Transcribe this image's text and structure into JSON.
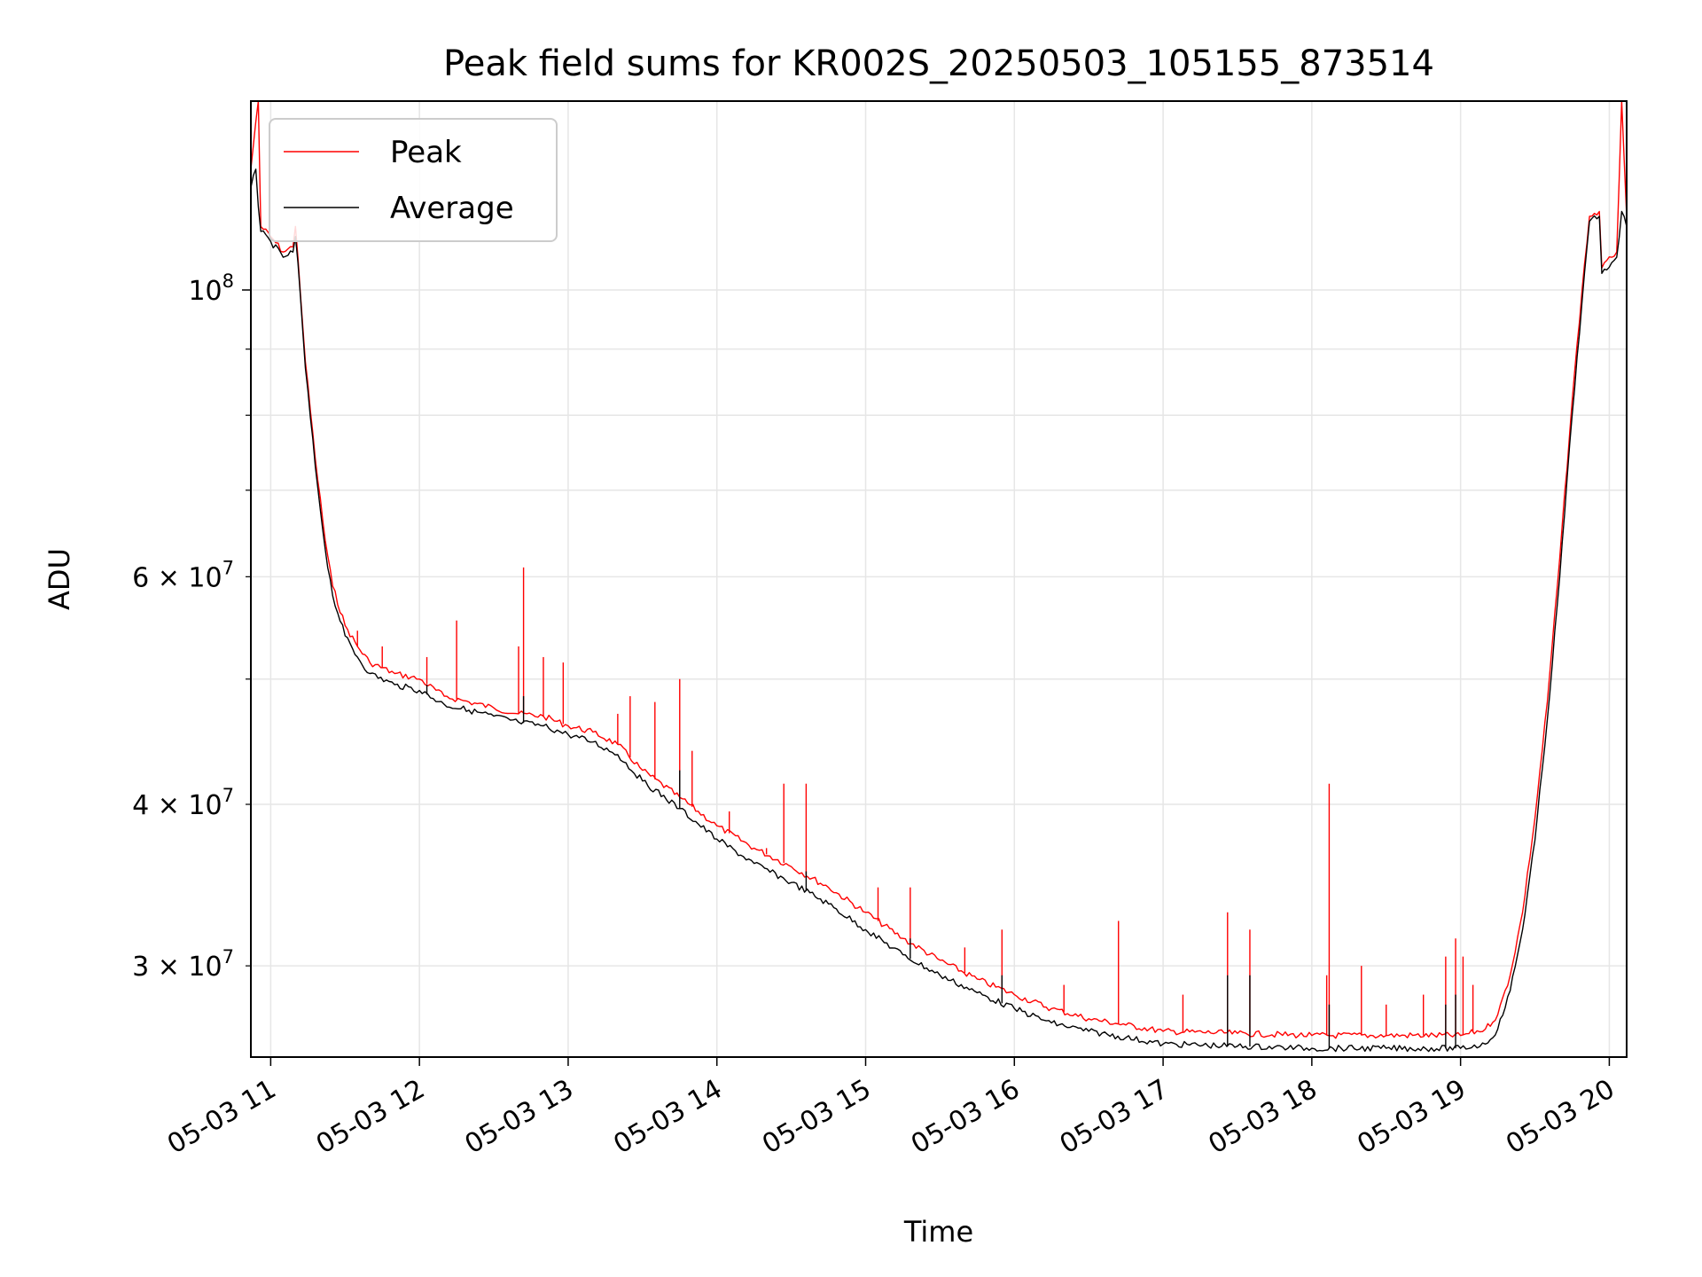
{
  "chart_data": {
    "type": "line",
    "title": "Peak field sums for KR002S_20250503_105155_873514",
    "xlabel": "Time",
    "ylabel": "ADU",
    "x_scale": "time",
    "y_scale": "log",
    "xlim": [
      "2025-05-03T10:52",
      "2025-05-03T20:07"
    ],
    "ylim": [
      25500000,
      140000000
    ],
    "grid": true,
    "legend_position": "upper-left",
    "x_tick_labels": [
      "05-03 11",
      "05-03 12",
      "05-03 13",
      "05-03 14",
      "05-03 15",
      "05-03 16",
      "05-03 17",
      "05-03 18",
      "05-03 19",
      "05-03 20"
    ],
    "x_ticks": [
      "2025-05-03T11:00",
      "2025-05-03T12:00",
      "2025-05-03T13:00",
      "2025-05-03T14:00",
      "2025-05-03T15:00",
      "2025-05-03T16:00",
      "2025-05-03T17:00",
      "2025-05-03T18:00",
      "2025-05-03T19:00",
      "2025-05-03T20:00"
    ],
    "y_major_ticks": [
      {
        "value": 100000000,
        "base": "10",
        "exp": "8"
      }
    ],
    "y_minor_ticks": [
      {
        "value": 30000000,
        "mant": "3",
        "exp": "7"
      },
      {
        "value": 40000000,
        "mant": "4",
        "exp": "7"
      },
      {
        "value": 50000000,
        "mant": "",
        "exp": ""
      },
      {
        "value": 60000000,
        "mant": "6",
        "exp": "7"
      },
      {
        "value": 70000000,
        "mant": "",
        "exp": ""
      },
      {
        "value": 80000000,
        "mant": "",
        "exp": ""
      },
      {
        "value": 90000000,
        "mant": "",
        "exp": ""
      }
    ],
    "series": [
      {
        "name": "Peak",
        "color": "#ff0000",
        "points": [
          [
            "2025-05-03T10:52",
            124000000
          ],
          [
            "2025-05-03T10:54",
            135000000
          ],
          [
            "2025-05-03T10:55",
            140000000
          ],
          [
            "2025-05-03T10:56",
            112000000
          ],
          [
            "2025-05-03T11:00",
            110000000
          ],
          [
            "2025-05-03T11:05",
            107000000
          ],
          [
            "2025-05-03T11:09",
            108000000
          ],
          [
            "2025-05-03T11:10",
            112000000
          ],
          [
            "2025-05-03T11:11",
            106000000
          ],
          [
            "2025-05-03T11:14",
            88000000
          ],
          [
            "2025-05-03T11:18",
            74000000
          ],
          [
            "2025-05-03T11:22",
            64000000
          ],
          [
            "2025-05-03T11:25",
            59000000
          ],
          [
            "2025-05-03T11:30",
            55000000
          ],
          [
            "2025-05-03T11:35",
            53000000
          ],
          [
            "2025-05-03T11:40",
            51500000
          ],
          [
            "2025-05-03T11:50",
            50500000
          ],
          [
            "2025-05-03T12:00",
            50000000
          ],
          [
            "2025-05-03T12:10",
            48500000
          ],
          [
            "2025-05-03T12:20",
            48000000
          ],
          [
            "2025-05-03T12:30",
            47500000
          ],
          [
            "2025-05-03T12:40",
            47000000
          ],
          [
            "2025-05-03T12:50",
            46800000
          ],
          [
            "2025-05-03T13:00",
            46000000
          ],
          [
            "2025-05-03T13:10",
            45500000
          ],
          [
            "2025-05-03T13:20",
            44500000
          ],
          [
            "2025-05-03T13:30",
            42500000
          ],
          [
            "2025-05-03T13:45",
            40500000
          ],
          [
            "2025-05-03T14:00",
            38500000
          ],
          [
            "2025-05-03T14:15",
            37000000
          ],
          [
            "2025-05-03T14:30",
            35800000
          ],
          [
            "2025-05-03T14:45",
            34500000
          ],
          [
            "2025-05-03T15:00",
            33000000
          ],
          [
            "2025-05-03T15:15",
            31500000
          ],
          [
            "2025-05-03T15:30",
            30300000
          ],
          [
            "2025-05-03T15:45",
            29300000
          ],
          [
            "2025-05-03T16:00",
            28500000
          ],
          [
            "2025-05-03T16:15",
            27800000
          ],
          [
            "2025-05-03T16:30",
            27300000
          ],
          [
            "2025-05-03T16:45",
            27000000
          ],
          [
            "2025-05-03T17:00",
            26700000
          ],
          [
            "2025-05-03T17:30",
            26600000
          ],
          [
            "2025-05-03T18:00",
            26500000
          ],
          [
            "2025-05-03T18:30",
            26500000
          ],
          [
            "2025-05-03T19:00",
            26500000
          ],
          [
            "2025-05-03T19:10",
            26800000
          ],
          [
            "2025-05-03T19:15",
            27500000
          ],
          [
            "2025-05-03T19:20",
            29500000
          ],
          [
            "2025-05-03T19:25",
            33000000
          ],
          [
            "2025-05-03T19:30",
            39000000
          ],
          [
            "2025-05-03T19:35",
            48000000
          ],
          [
            "2025-05-03T19:40",
            62000000
          ],
          [
            "2025-05-03T19:45",
            82000000
          ],
          [
            "2025-05-03T19:49",
            100000000
          ],
          [
            "2025-05-03T19:52",
            114000000
          ],
          [
            "2025-05-03T19:56",
            115000000
          ],
          [
            "2025-05-03T19:57",
            104000000
          ],
          [
            "2025-05-03T20:01",
            106000000
          ],
          [
            "2025-05-03T20:03",
            107000000
          ],
          [
            "2025-05-03T20:05",
            140000000
          ],
          [
            "2025-05-03T20:07",
            114000000
          ]
        ],
        "spikes": [
          [
            "2025-05-03T11:35",
            54500000
          ],
          [
            "2025-05-03T11:45",
            53000000
          ],
          [
            "2025-05-03T12:03",
            52000000
          ],
          [
            "2025-05-03T12:15",
            55500000
          ],
          [
            "2025-05-03T12:40",
            53000000
          ],
          [
            "2025-05-03T12:42",
            61000000
          ],
          [
            "2025-05-03T12:50",
            52000000
          ],
          [
            "2025-05-03T12:58",
            51500000
          ],
          [
            "2025-05-03T13:20",
            47000000
          ],
          [
            "2025-05-03T13:25",
            48500000
          ],
          [
            "2025-05-03T13:35",
            48000000
          ],
          [
            "2025-05-03T13:45",
            50000000
          ],
          [
            "2025-05-03T13:50",
            44000000
          ],
          [
            "2025-05-03T14:05",
            39500000
          ],
          [
            "2025-05-03T14:20",
            37000000
          ],
          [
            "2025-05-03T14:27",
            41500000
          ],
          [
            "2025-05-03T14:36",
            41500000
          ],
          [
            "2025-05-03T15:05",
            34500000
          ],
          [
            "2025-05-03T15:18",
            34500000
          ],
          [
            "2025-05-03T15:40",
            31000000
          ],
          [
            "2025-05-03T15:55",
            32000000
          ],
          [
            "2025-05-03T16:20",
            29000000
          ],
          [
            "2025-05-03T16:42",
            32500000
          ],
          [
            "2025-05-03T17:08",
            28500000
          ],
          [
            "2025-05-03T17:26",
            33000000
          ],
          [
            "2025-05-03T17:35",
            32000000
          ],
          [
            "2025-05-03T18:06",
            29500000
          ],
          [
            "2025-05-03T18:07",
            41500000
          ],
          [
            "2025-05-03T18:20",
            30000000
          ],
          [
            "2025-05-03T18:30",
            28000000
          ],
          [
            "2025-05-03T18:45",
            28500000
          ],
          [
            "2025-05-03T18:54",
            30500000
          ],
          [
            "2025-05-03T18:58",
            31500000
          ],
          [
            "2025-05-03T19:01",
            30500000
          ],
          [
            "2025-05-03T19:05",
            29000000
          ]
        ]
      },
      {
        "name": "Average",
        "color": "#000000",
        "points": [
          [
            "2025-05-03T10:52",
            120000000
          ],
          [
            "2025-05-03T10:54",
            124000000
          ],
          [
            "2025-05-03T10:55",
            116000000
          ],
          [
            "2025-05-03T10:56",
            111000000
          ],
          [
            "2025-05-03T11:00",
            109000000
          ],
          [
            "2025-05-03T11:05",
            106000000
          ],
          [
            "2025-05-03T11:09",
            107000000
          ],
          [
            "2025-05-03T11:10",
            110000000
          ],
          [
            "2025-05-03T11:11",
            105000000
          ],
          [
            "2025-05-03T11:14",
            87000000
          ],
          [
            "2025-05-03T11:18",
            73000000
          ],
          [
            "2025-05-03T11:22",
            63000000
          ],
          [
            "2025-05-03T11:25",
            58000000
          ],
          [
            "2025-05-03T11:30",
            54000000
          ],
          [
            "2025-05-03T11:35",
            52000000
          ],
          [
            "2025-05-03T11:40",
            50500000
          ],
          [
            "2025-05-03T11:50",
            49500000
          ],
          [
            "2025-05-03T12:00",
            49000000
          ],
          [
            "2025-05-03T12:10",
            47800000
          ],
          [
            "2025-05-03T12:20",
            47300000
          ],
          [
            "2025-05-03T12:30",
            46800000
          ],
          [
            "2025-05-03T12:40",
            46300000
          ],
          [
            "2025-05-03T12:50",
            46000000
          ],
          [
            "2025-05-03T13:00",
            45300000
          ],
          [
            "2025-05-03T13:10",
            44700000
          ],
          [
            "2025-05-03T13:20",
            43700000
          ],
          [
            "2025-05-03T13:30",
            41700000
          ],
          [
            "2025-05-03T13:45",
            39700000
          ],
          [
            "2025-05-03T14:00",
            37600000
          ],
          [
            "2025-05-03T14:15",
            36000000
          ],
          [
            "2025-05-03T14:30",
            34800000
          ],
          [
            "2025-05-03T14:45",
            33500000
          ],
          [
            "2025-05-03T15:00",
            32000000
          ],
          [
            "2025-05-03T15:15",
            30600000
          ],
          [
            "2025-05-03T15:30",
            29500000
          ],
          [
            "2025-05-03T15:45",
            28600000
          ],
          [
            "2025-05-03T16:00",
            27800000
          ],
          [
            "2025-05-03T16:15",
            27100000
          ],
          [
            "2025-05-03T16:30",
            26700000
          ],
          [
            "2025-05-03T16:45",
            26400000
          ],
          [
            "2025-05-03T17:00",
            26100000
          ],
          [
            "2025-05-03T17:30",
            26000000
          ],
          [
            "2025-05-03T18:00",
            25900000
          ],
          [
            "2025-05-03T18:30",
            25900000
          ],
          [
            "2025-05-03T19:00",
            25900000
          ],
          [
            "2025-05-03T19:10",
            26100000
          ],
          [
            "2025-05-03T19:15",
            26800000
          ],
          [
            "2025-05-03T19:20",
            28700000
          ],
          [
            "2025-05-03T19:25",
            32000000
          ],
          [
            "2025-05-03T19:30",
            37500000
          ],
          [
            "2025-05-03T19:35",
            46500000
          ],
          [
            "2025-05-03T19:40",
            60000000
          ],
          [
            "2025-05-03T19:45",
            80000000
          ],
          [
            "2025-05-03T19:49",
            98000000
          ],
          [
            "2025-05-03T19:52",
            113000000
          ],
          [
            "2025-05-03T19:56",
            114000000
          ],
          [
            "2025-05-03T19:57",
            103000000
          ],
          [
            "2025-05-03T20:01",
            105000000
          ],
          [
            "2025-05-03T20:03",
            106000000
          ],
          [
            "2025-05-03T20:05",
            115000000
          ],
          [
            "2025-05-03T20:07",
            112000000
          ]
        ],
        "spikes": [
          [
            "2025-05-03T12:03",
            49500000
          ],
          [
            "2025-05-03T12:42",
            48500000
          ],
          [
            "2025-05-03T13:45",
            42500000
          ],
          [
            "2025-05-03T14:36",
            35500000
          ],
          [
            "2025-05-03T15:18",
            31500000
          ],
          [
            "2025-05-03T15:55",
            29500000
          ],
          [
            "2025-05-03T17:26",
            29500000
          ],
          [
            "2025-05-03T17:35",
            29500000
          ],
          [
            "2025-05-03T18:07",
            28000000
          ],
          [
            "2025-05-03T18:54",
            28000000
          ],
          [
            "2025-05-03T18:58",
            28500000
          ]
        ]
      }
    ]
  }
}
